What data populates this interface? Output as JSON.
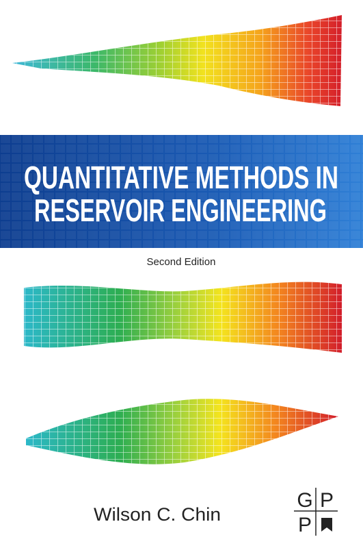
{
  "cover": {
    "title_lines": [
      "QUANTITATIVE METHODS IN",
      "RESERVOIR ENGINEERING"
    ],
    "edition": "Second Edition",
    "author": "Wilson C. Chin",
    "publisher_logo": [
      "G",
      "P",
      "P"
    ]
  }
}
